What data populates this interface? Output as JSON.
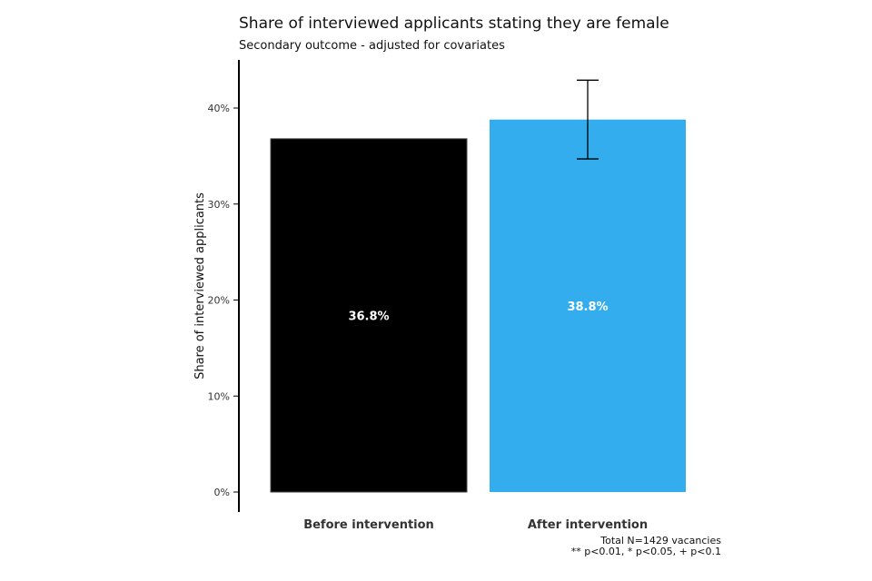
{
  "chart_data": {
    "type": "bar",
    "title": "Share of interviewed applicants stating they are female",
    "subtitle": "Secondary outcome - adjusted for covariates",
    "xlabel": "",
    "ylabel": "Share of interviewed applicants",
    "categories": [
      "Before intervention",
      "After intervention"
    ],
    "values": [
      36.8,
      38.8
    ],
    "value_labels": [
      "36.8%",
      "38.8%"
    ],
    "error_bars": [
      null,
      {
        "low": 34.7,
        "high": 42.9
      }
    ],
    "ylim": [
      0,
      45
    ],
    "yticks": [
      0,
      10,
      20,
      30,
      40
    ],
    "ytick_labels": [
      "0%",
      "10%",
      "20%",
      "30%",
      "40%"
    ],
    "colors": [
      "#000000",
      "#33adee"
    ],
    "grid": false,
    "caption": [
      "Total N=1429 vacancies",
      "** p<0.01, * p<0.05, + p<0.1"
    ]
  }
}
